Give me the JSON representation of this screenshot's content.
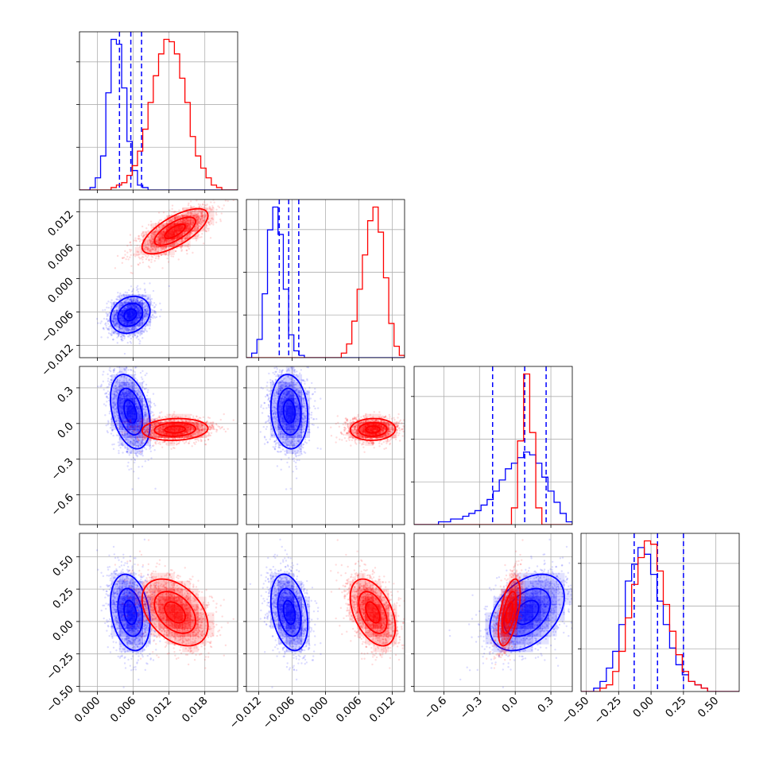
{
  "chart_data": {
    "type": "corner",
    "parameters": [
      {
        "id": "p0",
        "range": [
          -0.003,
          0.0235
        ],
        "ticks": [
          0.0,
          0.006,
          0.012,
          0.018
        ],
        "tick_labels": [
          "0.000",
          "0.006",
          "0.012",
          "0.018"
        ],
        "x_ticks_in_diagonal_only": false
      },
      {
        "id": "p1",
        "range": [
          -0.0142,
          0.0142
        ],
        "ticks": [
          -0.012,
          -0.006,
          0.0,
          0.006,
          0.012
        ],
        "tick_labels": [
          "−0.012",
          "−0.006",
          "0.000",
          "0.006",
          "0.012"
        ]
      },
      {
        "id": "p2",
        "range": [
          -0.85,
          0.48
        ],
        "ticks": [
          -0.6,
          -0.3,
          0.0,
          0.3
        ],
        "tick_labels": [
          "−0.6",
          "−0.3",
          "0.0",
          "0.3"
        ]
      },
      {
        "id": "p3",
        "range": [
          -0.54,
          0.68
        ],
        "ticks": [
          -0.5,
          -0.25,
          0.0,
          0.25,
          0.5
        ],
        "tick_labels": [
          "−0.50",
          "−0.25",
          "0.00",
          "0.25",
          "0.50"
        ]
      }
    ],
    "series": [
      {
        "color": "#0000ff",
        "means": [
          0.0055,
          -0.0065,
          0.1,
          0.07
        ],
        "stds": [
          0.0018,
          0.0018,
          0.17,
          0.16
        ],
        "corr": [
          [
            1,
            0.2,
            -0.35,
            -0.25
          ],
          [
            0.2,
            1,
            -0.1,
            -0.3
          ],
          [
            -0.35,
            -0.1,
            1,
            0.4
          ],
          [
            -0.25,
            -0.3,
            0.4,
            1
          ]
        ],
        "quantiles": [
          [
            0.0037,
            0.0056,
            0.0074
          ],
          [
            -0.0083,
            -0.0066,
            -0.0048
          ],
          [
            -0.19,
            0.08,
            0.26
          ],
          [
            -0.13,
            0.05,
            0.25
          ]
        ],
        "hist_counts": [
          [
            0,
            0,
            1,
            5,
            14,
            40,
            62,
            60,
            42,
            20,
            8,
            2,
            1,
            0,
            0,
            0,
            0,
            0,
            0,
            0,
            0,
            0,
            0,
            0,
            0,
            0,
            0,
            0,
            0,
            0
          ],
          [
            0,
            2,
            8,
            28,
            56,
            66,
            54,
            30,
            10,
            3,
            1,
            0,
            0,
            0,
            0,
            0,
            0,
            0,
            0,
            0,
            0,
            0,
            0,
            0,
            0,
            0,
            0,
            0,
            0,
            0
          ],
          [
            0,
            0,
            0,
            0,
            1,
            1,
            2,
            2,
            3,
            4,
            5,
            7,
            9,
            12,
            16,
            20,
            22,
            24,
            26,
            25,
            22,
            17,
            12,
            8,
            4,
            1
          ],
          [
            0,
            0,
            1,
            3,
            7,
            12,
            20,
            33,
            38,
            43,
            41,
            35,
            27,
            20,
            13,
            8,
            5,
            3,
            2,
            1,
            0,
            0,
            0,
            0,
            0
          ]
        ]
      },
      {
        "color": "#ff0000",
        "means": [
          0.013,
          0.0085,
          -0.05,
          0.07
        ],
        "stds": [
          0.003,
          0.0022,
          0.05,
          0.14
        ],
        "corr": [
          [
            1,
            0.7,
            0.1,
            -0.4
          ],
          [
            0.7,
            1,
            0.05,
            -0.45
          ],
          [
            0.1,
            0.05,
            1,
            0.55
          ],
          [
            -0.4,
            -0.45,
            0.55,
            1
          ]
        ],
        "quantiles": null,
        "hist_counts": [
          [
            0,
            0,
            0,
            0,
            0,
            0,
            1,
            2,
            3,
            6,
            10,
            16,
            25,
            36,
            47,
            56,
            62,
            61,
            56,
            46,
            36,
            22,
            14,
            9,
            5,
            2,
            1,
            0,
            0,
            0
          ],
          [
            0,
            0,
            0,
            0,
            0,
            0,
            0,
            0,
            0,
            0,
            0,
            0,
            0,
            0,
            0,
            0,
            0,
            0,
            2,
            6,
            16,
            30,
            45,
            60,
            66,
            55,
            35,
            15,
            5,
            1
          ],
          [
            0,
            0,
            0,
            0,
            0,
            0,
            0,
            0,
            0,
            0,
            0,
            0,
            0,
            0,
            0,
            0,
            6,
            30,
            54,
            33,
            6,
            0,
            0,
            0,
            0,
            0
          ],
          [
            0,
            0,
            0,
            1,
            2,
            6,
            12,
            22,
            32,
            40,
            45,
            44,
            36,
            26,
            18,
            11,
            6,
            3,
            2,
            1,
            0,
            0,
            0,
            0,
            0
          ]
        ]
      }
    ],
    "grid": true,
    "contour_levels": 3,
    "scatter_points_per_series": 1500
  }
}
